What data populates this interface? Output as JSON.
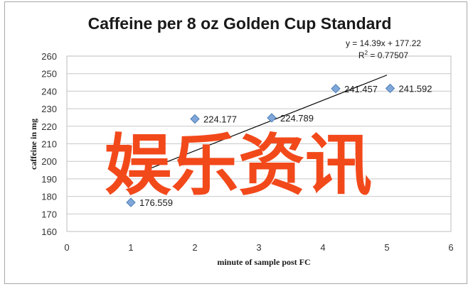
{
  "chart_data": {
    "type": "scatter",
    "title": "Caffeine per 8 oz Golden Cup Standard",
    "xlabel": "minute of sample post FC",
    "ylabel": "caffeine in mg",
    "xlim": [
      0,
      6
    ],
    "ylim": [
      160,
      260
    ],
    "x_ticks": [
      "0",
      "1",
      "2",
      "3",
      "4",
      "5",
      "6"
    ],
    "y_ticks": [
      "160",
      "170",
      "180",
      "190",
      "200",
      "210",
      "220",
      "230",
      "240",
      "250",
      "260"
    ],
    "grid": "horizontal",
    "legend": "none",
    "marker_color": "#7fa7d9",
    "marker_edge_color": "#4f7fb5",
    "series": [
      {
        "points": [
          {
            "x": 1.0,
            "y": 176.559,
            "label": "176.559"
          },
          {
            "x": 2.0,
            "y": 224.177,
            "label": "224.177"
          },
          {
            "x": 3.2,
            "y": 224.789,
            "label": "224.789"
          },
          {
            "x": 4.2,
            "y": 241.457,
            "label": "241.457"
          },
          {
            "x": 5.05,
            "y": 241.592,
            "label": "241.592"
          }
        ]
      }
    ],
    "trendline": {
      "slope": 14.39,
      "intercept": 177.22,
      "x_range": [
        1,
        5
      ],
      "equation": "y = 14.39x + 177.22",
      "r_squared_prefix": "R",
      "r_squared_exp": "2",
      "r_squared_value": " = 0.77507"
    }
  },
  "watermark": {
    "text": "娱乐资讯",
    "color": "#f2491b"
  }
}
